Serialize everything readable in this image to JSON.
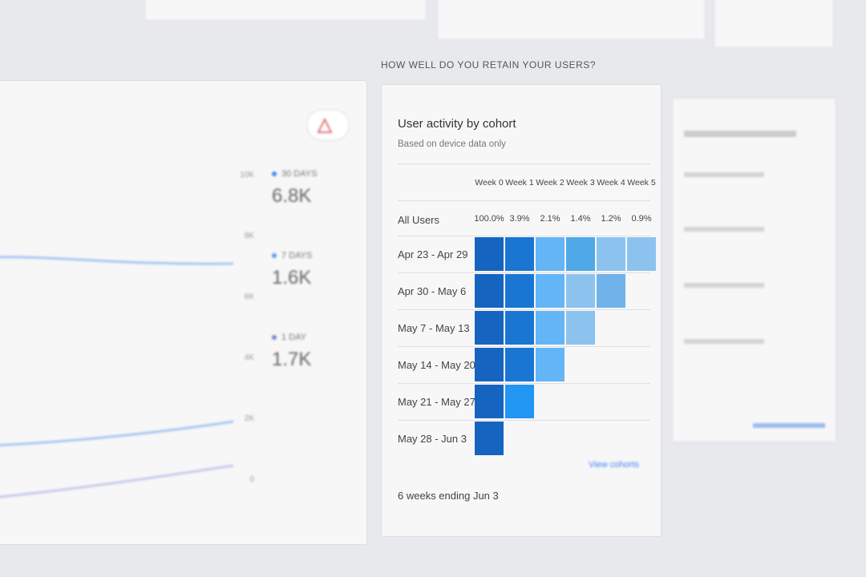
{
  "section_title": "HOW WELL DO YOU RETAIN YOUR USERS?",
  "active_users": {
    "metrics": [
      {
        "label": "30 DAYS",
        "value": "6.8K",
        "color": "#4285f4"
      },
      {
        "label": "7 DAYS",
        "value": "1.6K",
        "color": "#5e97f6"
      },
      {
        "label": "1 DAY",
        "value": "1.7K",
        "color": "#7986cb"
      }
    ],
    "axis": [
      "10K",
      "8K",
      "6K",
      "4K",
      "2K",
      "0"
    ]
  },
  "cohort": {
    "title": "User activity by cohort",
    "subtitle": "Based on device data only",
    "weeks": [
      "Week 0",
      "Week 1",
      "Week 2",
      "Week 3",
      "Week 4",
      "Week 5"
    ],
    "all_users": {
      "label": "All Users",
      "values": [
        "100.0%",
        "3.9%",
        "2.1%",
        "1.4%",
        "1.2%",
        "0.9%"
      ]
    },
    "rows": [
      {
        "label": "Apr 23 - Apr 29",
        "cells": [
          "#1565c0",
          "#1976d2",
          "#64b5f6",
          "#4fa8e8",
          "#8cc3ee",
          "#8cc3ee"
        ]
      },
      {
        "label": "Apr 30 - May 6",
        "cells": [
          "#1565c0",
          "#1976d2",
          "#64b5f6",
          "#8cc3ee",
          "#6fb3ea"
        ]
      },
      {
        "label": "May 7 - May 13",
        "cells": [
          "#1565c0",
          "#1976d2",
          "#64b5f6",
          "#8cc3ee"
        ]
      },
      {
        "label": "May 14 - May 20",
        "cells": [
          "#1565c0",
          "#1976d2",
          "#64b5f6"
        ]
      },
      {
        "label": "May 21 - May 27",
        "cells": [
          "#1565c0",
          "#2196f3"
        ]
      },
      {
        "label": "May 28 - Jun 3",
        "cells": [
          "#1565c0"
        ]
      }
    ],
    "footer": "6 weeks ending Jun 3",
    "link": "View cohorts"
  }
}
